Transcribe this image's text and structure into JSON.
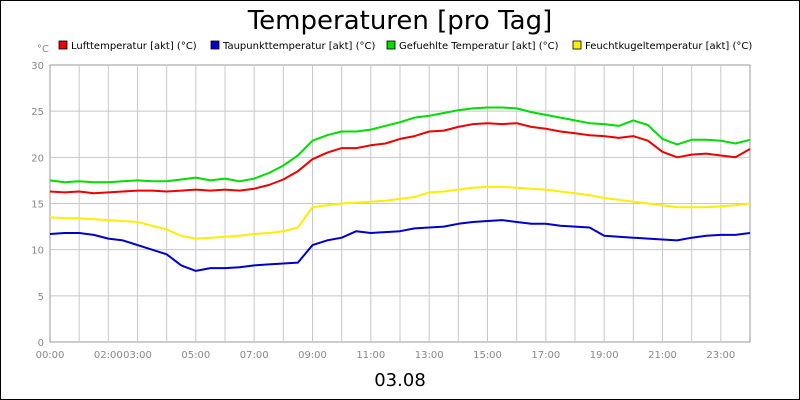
{
  "chart_data": {
    "type": "line",
    "title": "Temperaturen [pro Tag]",
    "subtitle": "03.08",
    "ylabel": "°C",
    "xlabel": "",
    "ylim": [
      0,
      30
    ],
    "yticks": [
      0,
      5,
      10,
      15,
      20,
      25,
      30
    ],
    "xlim": [
      0,
      24
    ],
    "xticks": [
      {
        "value": 0,
        "label": "00:00"
      },
      {
        "value": 2,
        "label": "02:00"
      },
      {
        "value": 3,
        "label": "03:00"
      },
      {
        "value": 5,
        "label": "05:00"
      },
      {
        "value": 7,
        "label": "07:00"
      },
      {
        "value": 9,
        "label": "09:00"
      },
      {
        "value": 11,
        "label": "11:00"
      },
      {
        "value": 13,
        "label": "13:00"
      },
      {
        "value": 15,
        "label": "15:00"
      },
      {
        "value": 17,
        "label": "17:00"
      },
      {
        "value": 19,
        "label": "19:00"
      },
      {
        "value": 21,
        "label": "21:00"
      },
      {
        "value": 23,
        "label": "23:00"
      }
    ],
    "grid": true,
    "legend_position": "top",
    "x": [
      0,
      0.5,
      1,
      1.5,
      2,
      2.5,
      3,
      3.5,
      4,
      4.5,
      5,
      5.5,
      6,
      6.5,
      7,
      7.5,
      8,
      8.5,
      9,
      9.5,
      10,
      10.5,
      11,
      11.5,
      12,
      12.5,
      13,
      13.5,
      14,
      14.5,
      15,
      15.5,
      16,
      16.5,
      17,
      17.5,
      18,
      18.5,
      19,
      19.5,
      20,
      20.5,
      21,
      21.5,
      22,
      22.5,
      23,
      23.5,
      24
    ],
    "series": [
      {
        "name": "Lufttemperatur [akt] (°C)",
        "color": "#ee0000",
        "values": [
          16.3,
          16.2,
          16.3,
          16.1,
          16.2,
          16.3,
          16.4,
          16.4,
          16.3,
          16.4,
          16.5,
          16.4,
          16.5,
          16.4,
          16.6,
          17.0,
          17.6,
          18.5,
          19.8,
          20.5,
          21.0,
          21.0,
          21.3,
          21.5,
          22.0,
          22.3,
          22.8,
          22.9,
          23.3,
          23.6,
          23.7,
          23.6,
          23.7,
          23.3,
          23.1,
          22.8,
          22.6,
          22.4,
          22.3,
          22.1,
          22.3,
          21.8,
          20.6,
          20.0,
          20.3,
          20.4,
          20.2,
          20.0,
          20.9
        ]
      },
      {
        "name": "Taupunkttemperatur [akt] (°C)",
        "color": "#0000cc",
        "values": [
          11.7,
          11.8,
          11.8,
          11.6,
          11.2,
          11.0,
          10.5,
          10.0,
          9.5,
          8.3,
          7.7,
          8.0,
          8.0,
          8.1,
          8.3,
          8.4,
          8.5,
          8.6,
          10.5,
          11.0,
          11.3,
          12.0,
          11.8,
          11.9,
          12.0,
          12.3,
          12.4,
          12.5,
          12.8,
          13.0,
          13.1,
          13.2,
          13.0,
          12.8,
          12.8,
          12.6,
          12.5,
          12.4,
          11.5,
          11.4,
          11.3,
          11.2,
          11.1,
          11.0,
          11.3,
          11.5,
          11.6,
          11.6,
          11.8
        ]
      },
      {
        "name": "Gefuehlte Temperatur [akt] (°C)",
        "color": "#00dd00",
        "values": [
          17.5,
          17.3,
          17.4,
          17.3,
          17.3,
          17.4,
          17.5,
          17.4,
          17.4,
          17.6,
          17.8,
          17.5,
          17.7,
          17.4,
          17.7,
          18.3,
          19.1,
          20.2,
          21.8,
          22.4,
          22.8,
          22.8,
          23.0,
          23.4,
          23.8,
          24.3,
          24.5,
          24.8,
          25.1,
          25.3,
          25.4,
          25.4,
          25.3,
          24.9,
          24.6,
          24.3,
          24.0,
          23.7,
          23.6,
          23.4,
          24.0,
          23.5,
          22.0,
          21.4,
          21.9,
          21.9,
          21.8,
          21.5,
          21.9
        ]
      },
      {
        "name": "Feuchtkugeltemperatur [akt] (°C)",
        "color": "#ffee00",
        "values": [
          13.5,
          13.4,
          13.4,
          13.3,
          13.2,
          13.1,
          13.0,
          12.6,
          12.2,
          11.5,
          11.2,
          11.3,
          11.4,
          11.5,
          11.7,
          11.8,
          12.0,
          12.4,
          14.6,
          14.8,
          15.0,
          15.1,
          15.2,
          15.3,
          15.5,
          15.7,
          16.2,
          16.3,
          16.5,
          16.7,
          16.8,
          16.8,
          16.7,
          16.6,
          16.5,
          16.3,
          16.1,
          15.9,
          15.6,
          15.4,
          15.2,
          15.0,
          14.8,
          14.6,
          14.6,
          14.6,
          14.7,
          14.8,
          15.0
        ]
      }
    ]
  }
}
